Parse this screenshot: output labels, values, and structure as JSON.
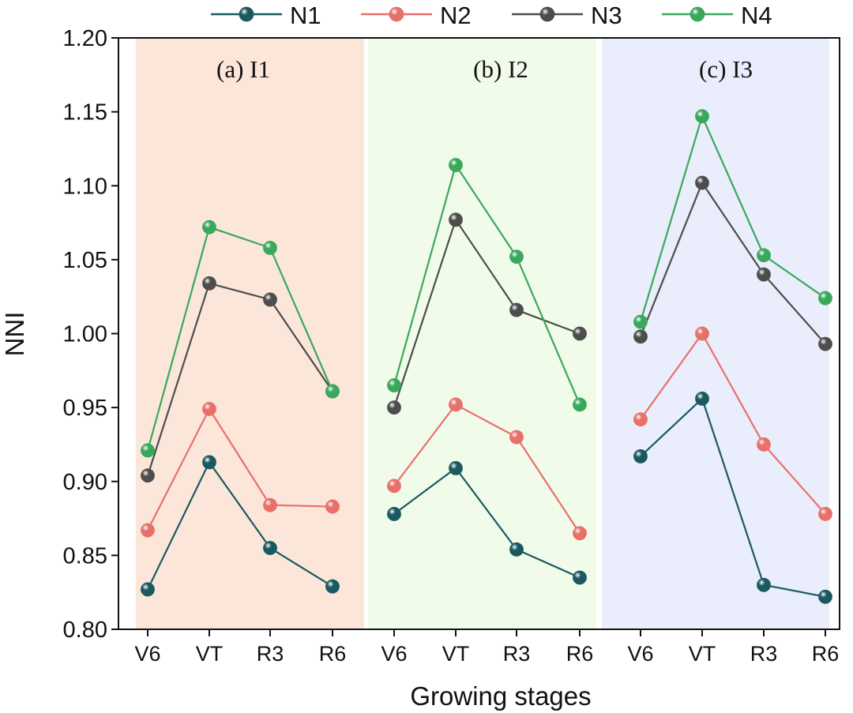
{
  "chart_data": {
    "type": "line",
    "xlabel": "Growing stages",
    "ylabel": "NNI",
    "ylim": [
      0.8,
      1.2
    ],
    "yticks": [
      "0.80",
      "0.85",
      "0.90",
      "0.95",
      "1.00",
      "1.05",
      "1.10",
      "1.15",
      "1.20"
    ],
    "categories": [
      "V6",
      "VT",
      "R3",
      "R6"
    ],
    "legend": [
      "N1",
      "N2",
      "N3",
      "N4"
    ],
    "colors": {
      "N1": "#1b5961",
      "N2": "#e8706a",
      "N3": "#4d4d4d",
      "N4": "#3aa85c",
      "panel_I1": "#fce6da",
      "panel_I2": "#f1fbe9",
      "panel_I3": "#eaedfb"
    },
    "panels": [
      {
        "label": "(a)  I1",
        "series": [
          {
            "name": "N1",
            "values": [
              0.827,
              0.913,
              0.855,
              0.829
            ]
          },
          {
            "name": "N2",
            "values": [
              0.867,
              0.949,
              0.884,
              0.883
            ]
          },
          {
            "name": "N3",
            "values": [
              0.904,
              1.034,
              1.023,
              0.961
            ]
          },
          {
            "name": "N4",
            "values": [
              0.921,
              1.072,
              1.058,
              0.961
            ]
          }
        ]
      },
      {
        "label": "(b)  I2",
        "series": [
          {
            "name": "N1",
            "values": [
              0.878,
              0.909,
              0.854,
              0.835
            ]
          },
          {
            "name": "N2",
            "values": [
              0.897,
              0.952,
              0.93,
              0.865
            ]
          },
          {
            "name": "N3",
            "values": [
              0.95,
              1.077,
              1.016,
              1.0
            ]
          },
          {
            "name": "N4",
            "values": [
              0.965,
              1.114,
              1.052,
              0.952
            ]
          }
        ]
      },
      {
        "label": "(c)  I3",
        "series": [
          {
            "name": "N1",
            "values": [
              0.917,
              0.956,
              0.83,
              0.822
            ]
          },
          {
            "name": "N2",
            "values": [
              0.942,
              1.0,
              0.925,
              0.878
            ]
          },
          {
            "name": "N3",
            "values": [
              0.998,
              1.102,
              1.04,
              0.993
            ]
          },
          {
            "name": "N4",
            "values": [
              1.008,
              1.147,
              1.053,
              1.024
            ]
          }
        ]
      }
    ]
  }
}
